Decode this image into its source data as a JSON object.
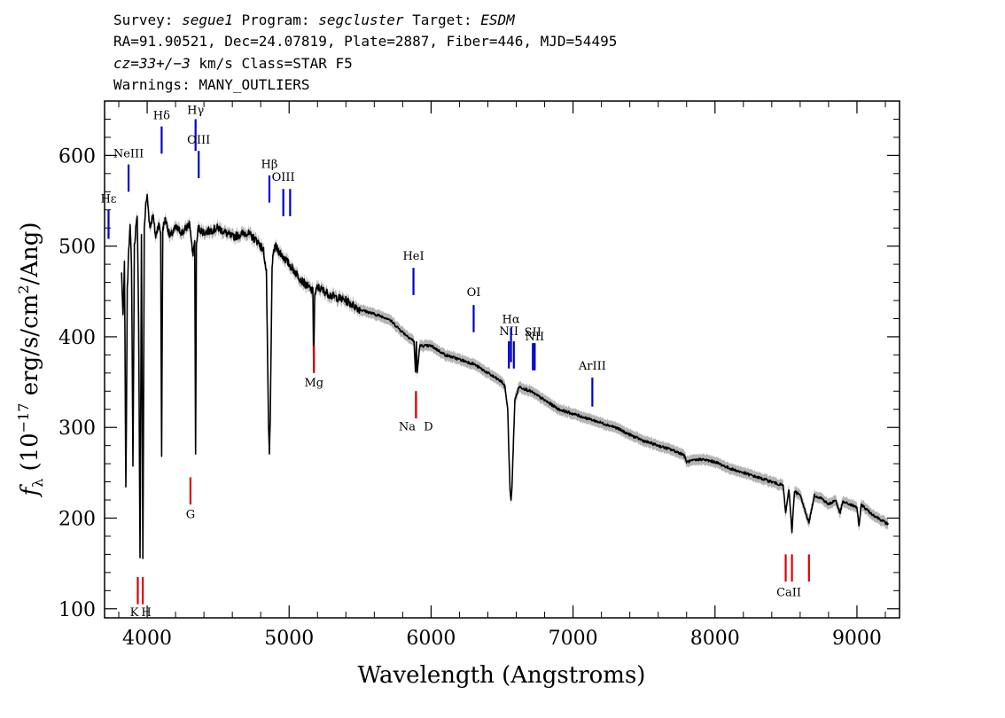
{
  "header": {
    "line1": {
      "survey_label": "Survey: ",
      "survey_value": "segue1",
      "program_label": " Program: ",
      "program_value": "segcluster",
      "target_label": " Target: ",
      "target_value": "ESDM"
    },
    "line2": "RA=91.90521, Dec=24.07819, Plate=2887, Fiber=446, MJD=54495",
    "line3": {
      "cz_value": "cz=33+/−3",
      "rest": " km/s Class=STAR F5"
    },
    "line4": "Warnings: MANY_OUTLIERS"
  },
  "chart_data": {
    "type": "line",
    "xlabel": "Wavelength (Angstroms)",
    "ylabel_parts": [
      "f",
      "λ",
      " (10",
      "−17",
      " erg/s/cm",
      "2",
      "/Ang)"
    ],
    "xlim": [
      3700,
      9300
    ],
    "ylim": [
      90,
      660
    ],
    "x_ticks": [
      4000,
      5000,
      6000,
      7000,
      8000,
      9000
    ],
    "y_ticks": [
      100,
      200,
      300,
      400,
      500,
      600
    ],
    "colors": {
      "flux": "#000000",
      "error_band": "#b4b4b4",
      "emission": "#0000cc",
      "absorption": "#dd0000"
    },
    "series": [
      {
        "x": [
          3820,
          3830,
          3840,
          3850,
          3860,
          3870,
          3880,
          3890,
          3900,
          3910,
          3920,
          3930,
          3940,
          3950,
          3960,
          3970,
          3980,
          3990,
          4000,
          4020,
          4040,
          4060,
          4080,
          4095,
          4102,
          4110,
          4130,
          4160,
          4200,
          4250,
          4300,
          4320,
          4335,
          4341,
          4347,
          4360,
          4400,
          4500,
          4600,
          4700,
          4780,
          4820,
          4840,
          4855,
          4861,
          4867,
          4880,
          4900,
          4950,
          5000,
          5100,
          5167,
          5173,
          5180,
          5200,
          5300,
          5400,
          5500,
          5600,
          5700,
          5800,
          5880,
          5890,
          5896,
          5902,
          5920,
          6000,
          6100,
          6200,
          6300,
          6400,
          6450,
          6500,
          6520,
          6540,
          6556,
          6563,
          6570,
          6590,
          6620,
          6700,
          6800,
          6900,
          7000,
          7100,
          7200,
          7300,
          7400,
          7500,
          7600,
          7700,
          7780,
          7800,
          7900,
          8000,
          8100,
          8200,
          8300,
          8400,
          8480,
          8498,
          8520,
          8542,
          8560,
          8600,
          8662,
          8700,
          8750,
          8800,
          8850,
          8880,
          8900,
          8950,
          9000,
          9014,
          9030,
          9100,
          9150,
          9200,
          9220
        ],
        "values": [
          470,
          420,
          480,
          230,
          450,
          500,
          520,
          480,
          260,
          500,
          520,
          530,
          420,
          155,
          510,
          155,
          520,
          545,
          555,
          520,
          535,
          510,
          525,
          515,
          270,
          520,
          530,
          510,
          520,
          515,
          525,
          490,
          505,
          270,
          500,
          520,
          515,
          520,
          510,
          515,
          505,
          495,
          470,
          300,
          270,
          305,
          480,
          500,
          490,
          480,
          460,
          450,
          365,
          445,
          455,
          445,
          440,
          430,
          425,
          420,
          405,
          395,
          360,
          395,
          360,
          390,
          390,
          380,
          375,
          370,
          360,
          355,
          350,
          345,
          320,
          230,
          220,
          235,
          330,
          345,
          340,
          330,
          320,
          315,
          310,
          305,
          300,
          292,
          285,
          280,
          275,
          270,
          262,
          265,
          262,
          255,
          250,
          245,
          240,
          236,
          205,
          232,
          185,
          230,
          225,
          195,
          225,
          222,
          215,
          220,
          205,
          218,
          215,
          212,
          190,
          215,
          205,
          200,
          195,
          193
        ]
      }
    ],
    "spectral_lines": [
      {
        "label": "Hε",
        "x": 3728,
        "kind": "emission",
        "tick_top": 540,
        "tick_bottom": 508,
        "label_y": 548
      },
      {
        "label": "NeIII",
        "x": 3869,
        "kind": "emission",
        "tick_top": 590,
        "tick_bottom": 560,
        "label_y": 598
      },
      {
        "label": "Hδ",
        "x": 4102,
        "kind": "emission",
        "tick_top": 632,
        "tick_bottom": 602,
        "label_y": 640
      },
      {
        "label": "Hγ",
        "x": 4341,
        "kind": "emission",
        "tick_top": 640,
        "tick_bottom": 605,
        "label_y": 646
      },
      {
        "label": "OIII",
        "x": 4363,
        "kind": "emission",
        "tick_top": 605,
        "tick_bottom": 575,
        "label_y": 613
      },
      {
        "label": "Hβ",
        "x": 4861,
        "kind": "emission",
        "tick_top": 578,
        "tick_bottom": 548,
        "label_y": 586
      },
      {
        "label": "OIII",
        "x": 4959,
        "kind": "emission",
        "tick_top": 563,
        "tick_bottom": 533,
        "label_y": 572
      },
      {
        "label": "",
        "x": 5007,
        "kind": "emission",
        "tick_top": 563,
        "tick_bottom": 533,
        "label_y": 0
      },
      {
        "label": "HeI",
        "x": 5876,
        "kind": "emission",
        "tick_top": 476,
        "tick_bottom": 446,
        "label_y": 485
      },
      {
        "label": "OI",
        "x": 6300,
        "kind": "emission",
        "tick_top": 435,
        "tick_bottom": 405,
        "label_y": 445
      },
      {
        "label": "NII",
        "x": 6548,
        "kind": "emission",
        "tick_top": 395,
        "tick_bottom": 365,
        "label_y": 402
      },
      {
        "label": "Hα",
        "x": 6563,
        "kind": "emission",
        "tick_top": 410,
        "tick_bottom": 372,
        "label_y": 415
      },
      {
        "label": "",
        "x": 6583,
        "kind": "emission",
        "tick_top": 395,
        "tick_bottom": 365,
        "label_y": 0
      },
      {
        "label": "SII",
        "x": 6717,
        "kind": "emission",
        "tick_top": 393,
        "tick_bottom": 363,
        "label_y": 401
      },
      {
        "label": "NII",
        "x": 6730,
        "kind": "emission",
        "tick_top": 393,
        "tick_bottom": 363,
        "label_y": 396
      },
      {
        "label": "ArIII",
        "x": 7136,
        "kind": "emission",
        "tick_top": 355,
        "tick_bottom": 323,
        "label_y": 364
      },
      {
        "label": "K",
        "x": 3934,
        "kind": "absorption",
        "tick_top": 135,
        "tick_bottom": 105,
        "label_y": 92
      },
      {
        "label": "H",
        "x": 3969,
        "kind": "absorption",
        "tick_top": 135,
        "tick_bottom": 105,
        "label_y": 92
      },
      {
        "label": "G",
        "x": 4305,
        "kind": "absorption",
        "tick_top": 245,
        "tick_bottom": 215,
        "label_y": 200
      },
      {
        "label": "Mg",
        "x": 5175,
        "kind": "absorption",
        "tick_top": 390,
        "tick_bottom": 360,
        "label_y": 345
      },
      {
        "label": "Na",
        "x": 5894,
        "kind": "absorption",
        "tick_top": 340,
        "tick_bottom": 310,
        "label_y": 297
      },
      {
        "label": "D",
        "x": 5894,
        "kind": "absorption",
        "tick_top": 340,
        "tick_bottom": 310,
        "label_y": 297
      },
      {
        "label": "CaII",
        "x": 8498,
        "kind": "absorption",
        "tick_top": 160,
        "tick_bottom": 130,
        "label_y": 114
      },
      {
        "label": "",
        "x": 8542,
        "kind": "absorption",
        "tick_top": 160,
        "tick_bottom": 130,
        "label_y": 0
      },
      {
        "label": "",
        "x": 8662,
        "kind": "absorption",
        "tick_top": 160,
        "tick_bottom": 130,
        "label_y": 0
      }
    ]
  }
}
